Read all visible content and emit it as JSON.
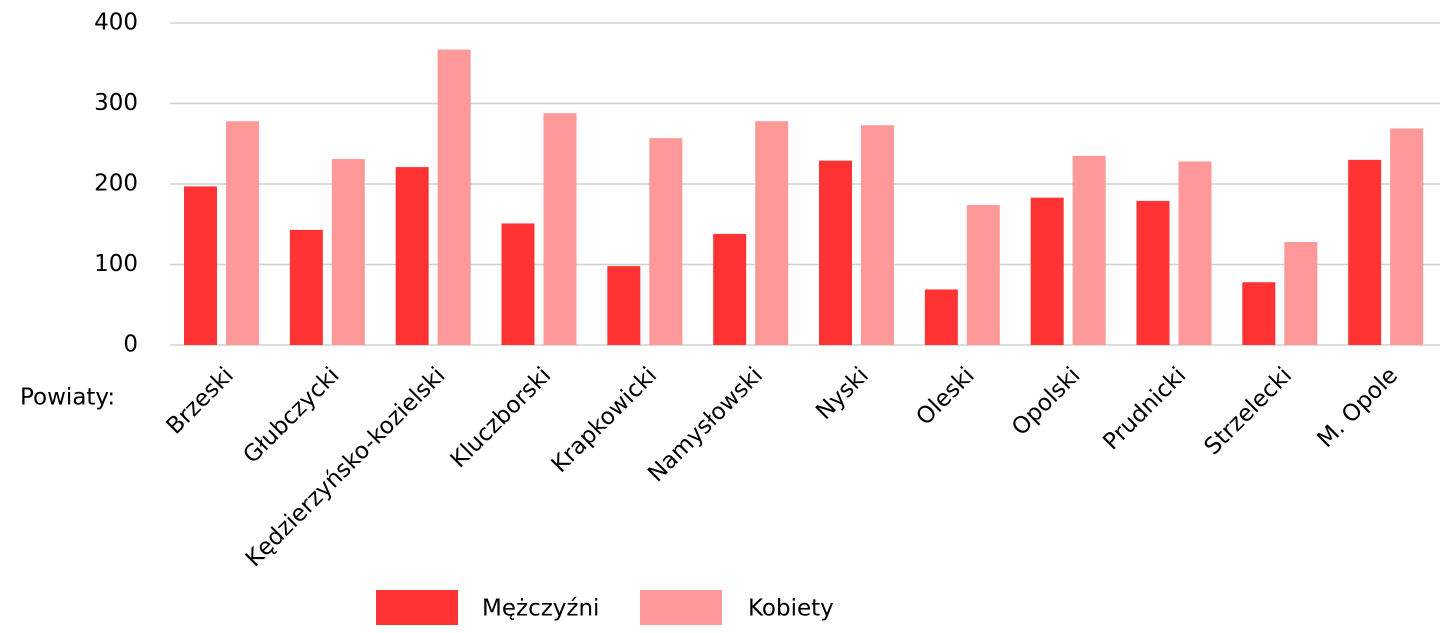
{
  "chart_data": {
    "type": "bar",
    "xlabel": "Powiaty:",
    "categories": [
      "Brzeski",
      "Głubczycki",
      "Kędzierzyńsko-kozielski",
      "Kluczborski",
      "Krapkowicki",
      "Namysłowski",
      "Nyski",
      "Oleski",
      "Opolski",
      "Prudnicki",
      "Strzelecki",
      "M. Opole"
    ],
    "series": [
      {
        "name": "Mężczyźni",
        "color": "#ff3333",
        "values": [
          197,
          143,
          221,
          151,
          98,
          138,
          229,
          69,
          183,
          179,
          78,
          230
        ]
      },
      {
        "name": "Kobiety",
        "color": "#ff9999",
        "values": [
          278,
          231,
          367,
          288,
          257,
          278,
          273,
          174,
          235,
          228,
          128,
          269
        ]
      }
    ],
    "ylim": [
      0,
      400
    ],
    "yticks": [
      0,
      100,
      200,
      300,
      400
    ],
    "grid": true,
    "legend": "bottom"
  }
}
